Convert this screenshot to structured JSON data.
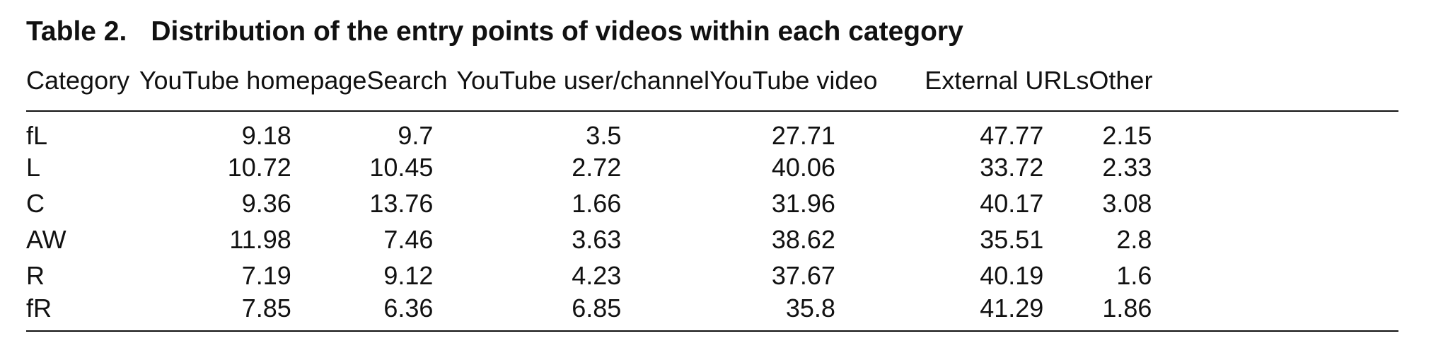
{
  "caption": {
    "label": "Table 2.",
    "text": "Distribution of the entry points of videos within each category"
  },
  "table": {
    "headers": [
      "Category",
      "YouTube homepage",
      "Search",
      "YouTube user/channel",
      "YouTube video",
      "External URLs",
      "Other"
    ],
    "rows": [
      [
        "fL",
        "9.18",
        "9.7",
        "3.5",
        "27.71",
        "47.77",
        "2.15"
      ],
      [
        "L",
        "10.72",
        "10.45",
        "2.72",
        "40.06",
        "33.72",
        "2.33"
      ],
      [
        "C",
        "9.36",
        "13.76",
        "1.66",
        "31.96",
        "40.17",
        "3.08"
      ],
      [
        "AW",
        "11.98",
        "7.46",
        "3.63",
        "38.62",
        "35.51",
        "2.8"
      ],
      [
        "R",
        "7.19",
        "9.12",
        "4.23",
        "37.67",
        "40.19",
        "1.6"
      ],
      [
        "fR",
        "7.85",
        "6.36",
        "6.85",
        "35.8",
        "41.29",
        "1.86"
      ]
    ]
  }
}
